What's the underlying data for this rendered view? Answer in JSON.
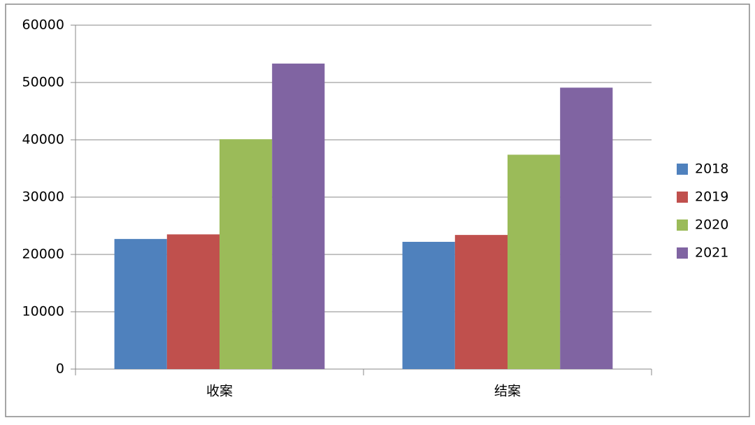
{
  "chart_data": {
    "type": "bar",
    "categories": [
      "收案",
      "结案"
    ],
    "series": [
      {
        "name": "2018",
        "color": "#4f81bd",
        "values": [
          22700,
          22200
        ]
      },
      {
        "name": "2019",
        "color": "#c0504d",
        "values": [
          23500,
          23400
        ]
      },
      {
        "name": "2020",
        "color": "#9bbb59",
        "values": [
          40100,
          37400
        ]
      },
      {
        "name": "2021",
        "color": "#8064a2",
        "values": [
          53300,
          49100
        ]
      }
    ],
    "ylim": [
      0,
      60000
    ],
    "yticks": [
      0,
      10000,
      20000,
      30000,
      40000,
      50000,
      60000
    ],
    "grid": true,
    "legend": "right"
  }
}
